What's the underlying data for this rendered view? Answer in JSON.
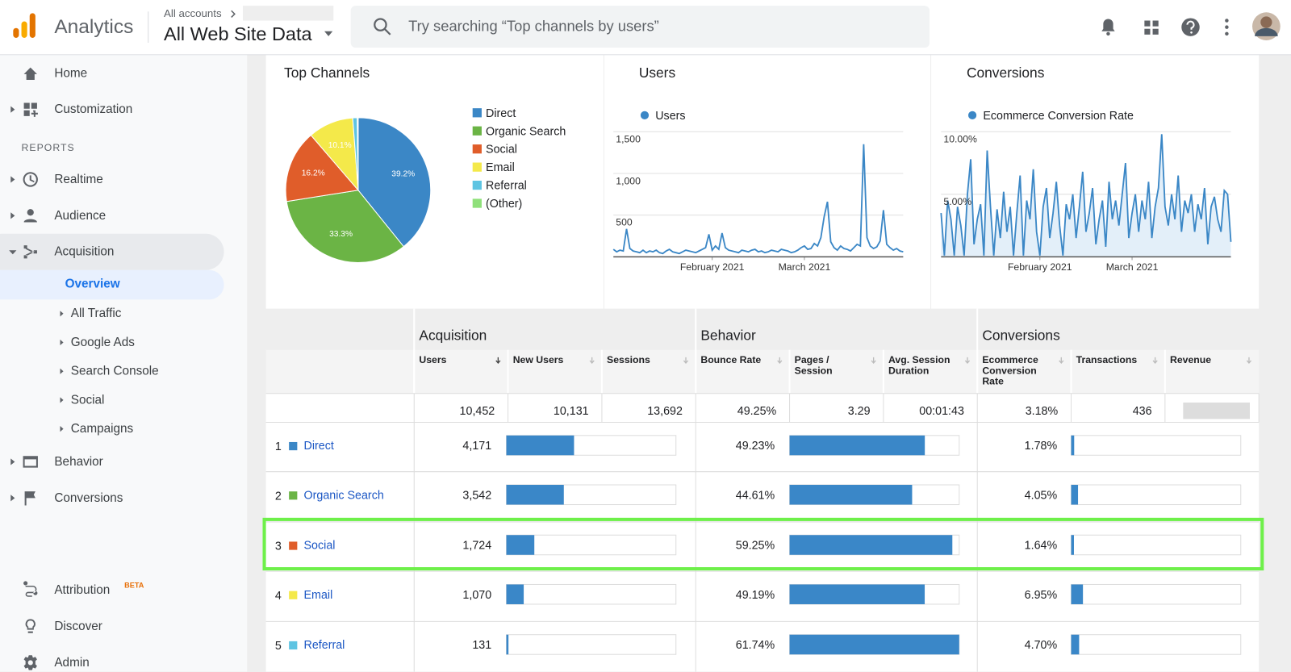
{
  "header": {
    "app_name": "Analytics",
    "breadcrumb": "All accounts",
    "property": "All Web Site Data",
    "search_placeholder": "Try searching “Top channels by users”"
  },
  "sidebar": {
    "nav": [
      "Home",
      "Customization"
    ],
    "reports_heading": "REPORTS",
    "reports": [
      "Realtime",
      "Audience",
      "Acquisition"
    ],
    "acquisition_subnav": [
      "Overview",
      "All Traffic",
      "Google Ads",
      "Search Console",
      "Social",
      "Campaigns"
    ],
    "reports_more": [
      "Behavior",
      "Conversions"
    ],
    "bottom_nav": [
      "Attribution",
      "Discover",
      "Admin"
    ],
    "beta_badge": "BETA"
  },
  "chart_data": [
    {
      "type": "pie",
      "title": "Top Channels",
      "categories": [
        "Direct",
        "Organic Search",
        "Social",
        "Email",
        "Referral",
        "(Other)"
      ],
      "values": [
        39.2,
        33.3,
        16.2,
        10.1,
        1.0,
        0.2
      ],
      "value_labels": [
        "39.2%",
        "33.3%",
        "16.2%",
        "10.1%",
        null,
        null
      ],
      "colors": [
        "#3b87c6",
        "#6bb445",
        "#e05d2a",
        "#f4e94a",
        "#5ec4e2",
        "#8fe07a"
      ]
    },
    {
      "type": "line",
      "title": "Users",
      "series": [
        {
          "name": "Users",
          "color": "#3b87c6",
          "values": [
            90,
            60,
            80,
            70,
            335,
            100,
            70,
            60,
            50,
            80,
            50,
            70,
            60,
            80,
            50,
            40,
            70,
            90,
            60,
            50,
            40,
            60,
            80,
            70,
            60,
            50,
            70,
            90,
            110,
            270,
            80,
            130,
            90,
            285,
            110,
            80,
            70,
            60,
            50,
            80,
            70,
            60,
            80,
            90,
            60,
            70,
            50,
            60,
            80,
            70,
            60,
            90,
            80,
            70,
            50,
            60,
            80,
            110,
            130,
            90,
            100,
            160,
            130,
            230,
            480,
            660,
            180,
            110,
            80,
            130,
            100,
            90,
            70,
            110,
            150,
            130,
            1350,
            230,
            130,
            100,
            120,
            190,
            560,
            150,
            110,
            80,
            100,
            70,
            60
          ]
        }
      ],
      "xlim": [
        0,
        88
      ],
      "xticks": [
        {
          "value": 30,
          "label": "February 2021"
        },
        {
          "value": 58,
          "label": "March 2021"
        }
      ],
      "ylim": [
        0,
        1500
      ],
      "yticks": [
        500,
        {
          "value": 1000,
          "label": "1,000"
        },
        {
          "value": 1500,
          "label": "1,500"
        }
      ],
      "grid": true
    },
    {
      "type": "area",
      "title": "Conversions",
      "series": [
        {
          "name": "Ecommerce Conversion Rate",
          "color": "#3b87c6",
          "values": [
            3.5,
            0.1,
            4.5,
            3.0,
            0.1,
            4.0,
            2.5,
            0.1,
            5.0,
            7.8,
            1.0,
            3.0,
            4.2,
            0.1,
            8.5,
            4.0,
            0.1,
            3.8,
            1.5,
            5.2,
            2.0,
            4.0,
            0.1,
            3.5,
            6.5,
            0.1,
            4.5,
            3.0,
            7.0,
            2.0,
            0.1,
            4.0,
            5.5,
            1.5,
            3.5,
            6.0,
            2.5,
            0.1,
            4.2,
            3.0,
            5.0,
            1.5,
            4.0,
            6.8,
            2.0,
            3.5,
            5.5,
            1.0,
            3.0,
            4.5,
            0.8,
            6.0,
            3.0,
            4.5,
            2.5,
            5.0,
            7.5,
            1.5,
            3.5,
            5.0,
            2.0,
            4.5,
            3.0,
            6.0,
            1.5,
            4.0,
            5.5,
            9.8,
            4.0,
            2.5,
            5.0,
            3.0,
            6.5,
            2.0,
            4.5,
            3.5,
            5.0,
            2.0,
            4.2,
            3.0,
            5.5,
            1.0,
            4.0,
            4.8,
            3.0,
            2.0,
            5.3,
            5.0,
            1.2
          ]
        }
      ],
      "xlim": [
        0,
        88
      ],
      "xticks": [
        {
          "value": 30,
          "label": "February 2021"
        },
        {
          "value": 58,
          "label": "March 2021"
        }
      ],
      "ylim": [
        0,
        10
      ],
      "yticks": [
        {
          "value": 5,
          "label": "5.00%"
        },
        {
          "value": 10,
          "label": "10.00%"
        }
      ],
      "grid": true
    }
  ],
  "table": {
    "groups": [
      "Acquisition",
      "Behavior",
      "Conversions"
    ],
    "columns": [
      "Users",
      "New Users",
      "Sessions",
      "Bounce Rate",
      "Pages / Session",
      "Avg. Session Duration",
      "Ecommerce Conversion Rate",
      "Transactions",
      "Revenue"
    ],
    "totals": {
      "users": {
        "value": 10452,
        "label": "10,452"
      },
      "new_users": "10,131",
      "sessions": "13,692",
      "bounce_rate": "49.25%",
      "pages_per_session": 3.29,
      "avg_session_duration": "00:01:43",
      "conversion_rate": "3.18%",
      "transactions": 436
    },
    "rows": [
      {
        "rank": 1,
        "channel": "Direct",
        "users": {
          "value": 4171,
          "label": "4,171"
        },
        "bounce_rate": {
          "value": 49.23,
          "label": "49.23%"
        },
        "conversion_rate": {
          "value": 1.78,
          "label": "1.78%"
        }
      },
      {
        "rank": 2,
        "channel": "Organic Search",
        "users": {
          "value": 3542,
          "label": "3,542"
        },
        "bounce_rate": {
          "value": 44.61,
          "label": "44.61%"
        },
        "conversion_rate": {
          "value": 4.05,
          "label": "4.05%"
        }
      },
      {
        "rank": 3,
        "channel": "Social",
        "users": {
          "value": 1724,
          "label": "1,724"
        },
        "bounce_rate": {
          "value": 59.25,
          "label": "59.25%"
        },
        "conversion_rate": {
          "value": 1.64,
          "label": "1.64%"
        }
      },
      {
        "rank": 4,
        "channel": "Email",
        "users": {
          "value": 1070,
          "label": "1,070"
        },
        "bounce_rate": {
          "value": 49.19,
          "label": "49.19%"
        },
        "conversion_rate": {
          "value": 6.95,
          "label": "6.95%"
        }
      },
      {
        "rank": 5,
        "channel": "Referral",
        "users": {
          "value": 131,
          "label": "131"
        },
        "bounce_rate": {
          "value": 61.74,
          "label": "61.74%"
        },
        "conversion_rate": {
          "value": 4.7,
          "label": "4.70%"
        }
      }
    ]
  }
}
